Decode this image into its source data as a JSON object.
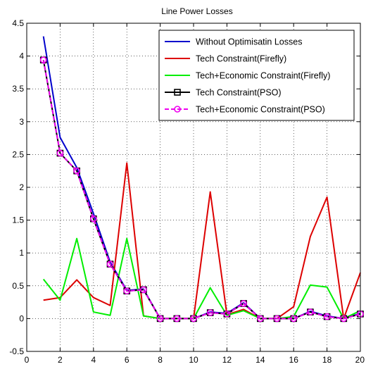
{
  "chart_data": {
    "type": "line",
    "title": "Line Power Losses",
    "xlabel": "",
    "ylabel": "",
    "xlim": [
      0,
      20
    ],
    "ylim": [
      -0.5,
      4.5
    ],
    "xticks": [
      0,
      2,
      4,
      6,
      8,
      10,
      12,
      14,
      16,
      18,
      20
    ],
    "yticks": [
      -0.5,
      0,
      0.5,
      1,
      1.5,
      2,
      2.5,
      3,
      3.5,
      4,
      4.5
    ],
    "grid": true,
    "legend_position": "top-right",
    "x": [
      1,
      2,
      3,
      4,
      5,
      6,
      7,
      8,
      9,
      10,
      11,
      12,
      13,
      14,
      15,
      16,
      17,
      18,
      19,
      20
    ],
    "series": [
      {
        "name": "Without Optimisatin Losses",
        "color": "#0000cc",
        "line": "solid",
        "marker": "none",
        "values": [
          4.3,
          2.76,
          2.3,
          1.6,
          0.86,
          0.43,
          0.45,
          0.0,
          0.0,
          0.0,
          0.1,
          0.08,
          0.24,
          0.0,
          0.0,
          0.0,
          0.11,
          0.04,
          0.0,
          0.08
        ]
      },
      {
        "name": "Tech Constraint(Firefly)",
        "color": "#dd0000",
        "line": "solid",
        "marker": "none",
        "values": [
          0.28,
          0.32,
          0.59,
          0.32,
          0.2,
          2.37,
          0.04,
          0.0,
          0.0,
          0.0,
          1.93,
          0.06,
          0.14,
          0.0,
          0.0,
          0.18,
          1.25,
          1.85,
          0.0,
          0.7
        ]
      },
      {
        "name": "Tech+Economic Constraint(Firefly)",
        "color": "#00ee00",
        "line": "solid",
        "marker": "none",
        "values": [
          0.6,
          0.28,
          1.22,
          0.1,
          0.05,
          1.22,
          0.04,
          0.0,
          0.0,
          0.0,
          0.47,
          0.05,
          0.12,
          0.0,
          0.0,
          0.03,
          0.51,
          0.48,
          0.0,
          0.12
        ]
      },
      {
        "name": "Tech Constraint(PSO)",
        "color": "#000000",
        "line": "solid",
        "marker": "square",
        "values": [
          3.94,
          2.52,
          2.25,
          1.52,
          0.83,
          0.42,
          0.44,
          0.0,
          0.0,
          0.0,
          0.09,
          0.07,
          0.23,
          0.0,
          0.0,
          0.0,
          0.1,
          0.03,
          0.0,
          0.07
        ]
      },
      {
        "name": "Tech+Economic Constraint(PSO)",
        "color": "#ee00ee",
        "line": "dashed",
        "marker": "circle",
        "values": [
          3.94,
          2.52,
          2.25,
          1.52,
          0.83,
          0.42,
          0.44,
          0.0,
          0.0,
          0.0,
          0.09,
          0.07,
          0.23,
          0.0,
          0.0,
          0.0,
          0.1,
          0.03,
          0.0,
          0.07
        ]
      }
    ]
  }
}
